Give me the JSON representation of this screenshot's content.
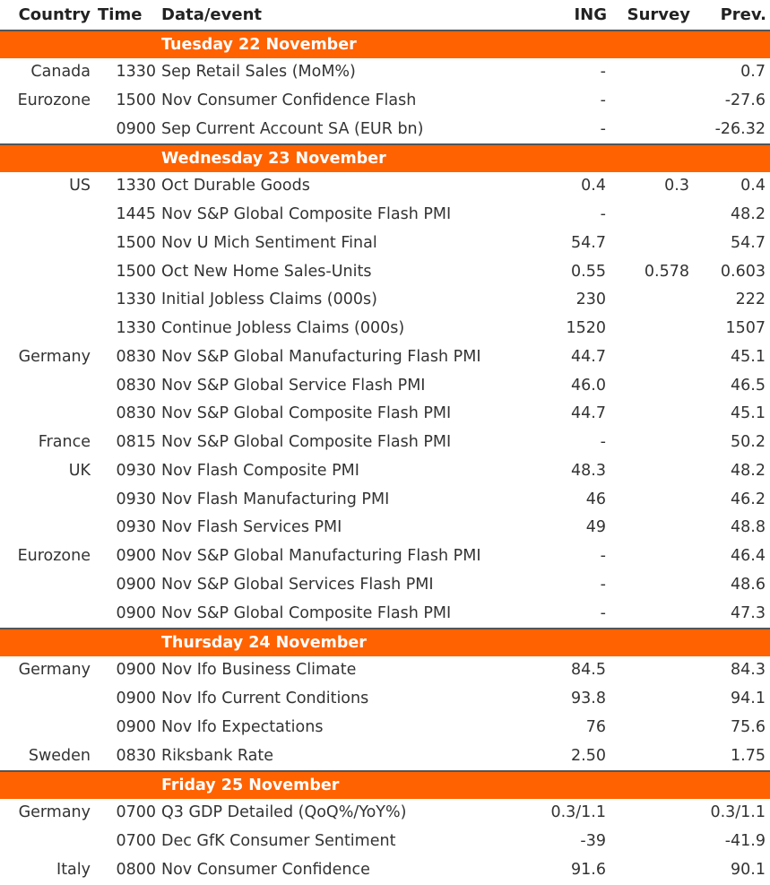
{
  "header": {
    "country": "Country",
    "time": "Time",
    "event": "Data/event",
    "ing": "ING",
    "survey": "Survey",
    "prev": "Prev."
  },
  "days": [
    {
      "label": "Tuesday 22 November",
      "rows": [
        {
          "country": "Canada",
          "time": "1330",
          "event": "Sep Retail Sales (MoM%)",
          "ing": "-",
          "survey": "",
          "prev": "0.7"
        },
        {
          "country": "Eurozone",
          "time": "1500",
          "event": "Nov Consumer Confidence Flash",
          "ing": "-",
          "survey": "",
          "prev": "-27.6"
        },
        {
          "country": "",
          "time": "0900",
          "event": "Sep Current Account SA (EUR bn)",
          "ing": "-",
          "survey": "",
          "prev": "-26.32"
        }
      ]
    },
    {
      "label": "Wednesday 23 November",
      "rows": [
        {
          "country": "US",
          "time": "1330",
          "event": "Oct Durable Goods",
          "ing": "0.4",
          "survey": "0.3",
          "prev": "0.4"
        },
        {
          "country": "",
          "time": "1445",
          "event": "Nov S&P Global Composite Flash PMI",
          "ing": "-",
          "survey": "",
          "prev": "48.2"
        },
        {
          "country": "",
          "time": "1500",
          "event": "Nov U Mich Sentiment Final",
          "ing": "54.7",
          "survey": "",
          "prev": "54.7"
        },
        {
          "country": "",
          "time": "1500",
          "event": "Oct New Home Sales-Units",
          "ing": "0.55",
          "survey": "0.578",
          "prev": "0.603"
        },
        {
          "country": "",
          "time": "1330",
          "event": "Initial Jobless Claims (000s)",
          "ing": "230",
          "survey": "",
          "prev": "222"
        },
        {
          "country": "",
          "time": "1330",
          "event": "Continue Jobless Claims (000s)",
          "ing": "1520",
          "survey": "",
          "prev": "1507"
        },
        {
          "country": "Germany",
          "time": "0830",
          "event": "Nov S&P Global Manufacturing Flash PMI",
          "ing": "44.7",
          "survey": "",
          "prev": "45.1"
        },
        {
          "country": "",
          "time": "0830",
          "event": "Nov S&P Global Service Flash PMI",
          "ing": "46.0",
          "survey": "",
          "prev": "46.5"
        },
        {
          "country": "",
          "time": "0830",
          "event": "Nov S&P Global Composite Flash PMI",
          "ing": "44.7",
          "survey": "",
          "prev": "45.1"
        },
        {
          "country": "France",
          "time": "0815",
          "event": "Nov S&P Global Composite Flash PMI",
          "ing": "-",
          "survey": "",
          "prev": "50.2"
        },
        {
          "country": "UK",
          "time": "0930",
          "event": "Nov Flash Composite PMI",
          "ing": "48.3",
          "survey": "",
          "prev": "48.2"
        },
        {
          "country": "",
          "time": "0930",
          "event": "Nov Flash Manufacturing PMI",
          "ing": "46",
          "survey": "",
          "prev": "46.2"
        },
        {
          "country": "",
          "time": "0930",
          "event": "Nov Flash Services PMI",
          "ing": "49",
          "survey": "",
          "prev": "48.8"
        },
        {
          "country": "Eurozone",
          "time": "0900",
          "event": "Nov S&P Global Manufacturing Flash PMI",
          "ing": "-",
          "survey": "",
          "prev": "46.4"
        },
        {
          "country": "",
          "time": "0900",
          "event": "Nov S&P Global Services Flash PMI",
          "ing": "-",
          "survey": "",
          "prev": "48.6"
        },
        {
          "country": "",
          "time": "0900",
          "event": "Nov S&P Global Composite Flash PMI",
          "ing": "-",
          "survey": "",
          "prev": "47.3"
        }
      ]
    },
    {
      "label": "Thursday 24 November",
      "rows": [
        {
          "country": "Germany",
          "time": "0900",
          "event": "Nov Ifo Business Climate",
          "ing": "84.5",
          "survey": "",
          "prev": "84.3"
        },
        {
          "country": "",
          "time": "0900",
          "event": "Nov Ifo Current Conditions",
          "ing": "93.8",
          "survey": "",
          "prev": "94.1"
        },
        {
          "country": "",
          "time": "0900",
          "event": "Nov Ifo Expectations",
          "ing": "76",
          "survey": "",
          "prev": "75.6"
        },
        {
          "country": "Sweden",
          "time": "0830",
          "event": "Riksbank Rate",
          "ing": "2.50",
          "survey": "",
          "prev": "1.75"
        }
      ]
    },
    {
      "label": "Friday 25 November",
      "rows": [
        {
          "country": "Germany",
          "time": "0700",
          "event": "Q3 GDP Detailed (QoQ%/YoY%)",
          "ing": "0.3/1.1",
          "survey": "",
          "prev": "0.3/1.1"
        },
        {
          "country": "",
          "time": "0700",
          "event": "Dec GfK Consumer Sentiment",
          "ing": "-39",
          "survey": "",
          "prev": "-41.9"
        },
        {
          "country": "Italy",
          "time": "0800",
          "event": "Nov Consumer Confidence",
          "ing": "91.6",
          "survey": "",
          "prev": "90.1"
        }
      ]
    }
  ]
}
